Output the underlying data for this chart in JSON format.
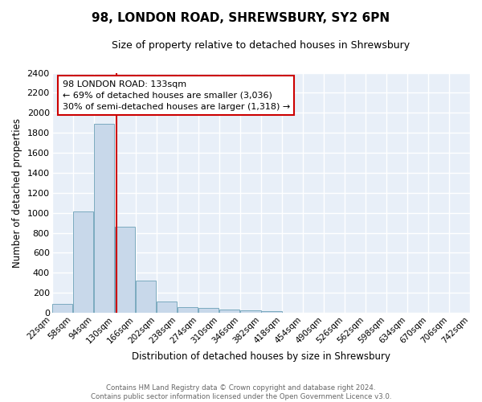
{
  "title": "98, LONDON ROAD, SHREWSBURY, SY2 6PN",
  "subtitle": "Size of property relative to detached houses in Shrewsbury",
  "xlabel": "Distribution of detached houses by size in Shrewsbury",
  "ylabel": "Number of detached properties",
  "bar_color": "#c8d8ea",
  "bar_edge_color": "#7baabf",
  "background_color": "#e8eff8",
  "grid_color": "white",
  "annotation_line1": "98 LONDON ROAD: 133sqm",
  "annotation_line2": "← 69% of detached houses are smaller (3,036)",
  "annotation_line3": "30% of semi-detached houses are larger (1,318) →",
  "vline_x": 133,
  "vline_color": "#cc0000",
  "bin_edges": [
    22,
    58,
    94,
    130,
    166,
    202,
    238,
    274,
    310,
    346,
    382,
    418,
    454,
    490,
    526,
    562,
    598,
    634,
    670,
    706,
    742
  ],
  "bin_heights": [
    90,
    1010,
    1890,
    860,
    320,
    110,
    55,
    48,
    35,
    22,
    20,
    0,
    0,
    0,
    0,
    0,
    0,
    0,
    0,
    0
  ],
  "tick_labels": [
    "22sqm",
    "58sqm",
    "94sqm",
    "130sqm",
    "166sqm",
    "202sqm",
    "238sqm",
    "274sqm",
    "310sqm",
    "346sqm",
    "382sqm",
    "418sqm",
    "454sqm",
    "490sqm",
    "526sqm",
    "562sqm",
    "598sqm",
    "634sqm",
    "670sqm",
    "706sqm",
    "742sqm"
  ],
  "ylim": [
    0,
    2400
  ],
  "yticks": [
    0,
    200,
    400,
    600,
    800,
    1000,
    1200,
    1400,
    1600,
    1800,
    2000,
    2200,
    2400
  ],
  "footer_text": "Contains HM Land Registry data © Crown copyright and database right 2024.\nContains public sector information licensed under the Open Government Licence v3.0.",
  "annotation_box_color": "white",
  "annotation_box_edge_color": "#cc0000",
  "title_fontsize": 11,
  "subtitle_fontsize": 9,
  "ylabel_fontsize": 8.5,
  "xlabel_fontsize": 8.5,
  "tick_fontsize": 7.5,
  "ytick_fontsize": 8
}
